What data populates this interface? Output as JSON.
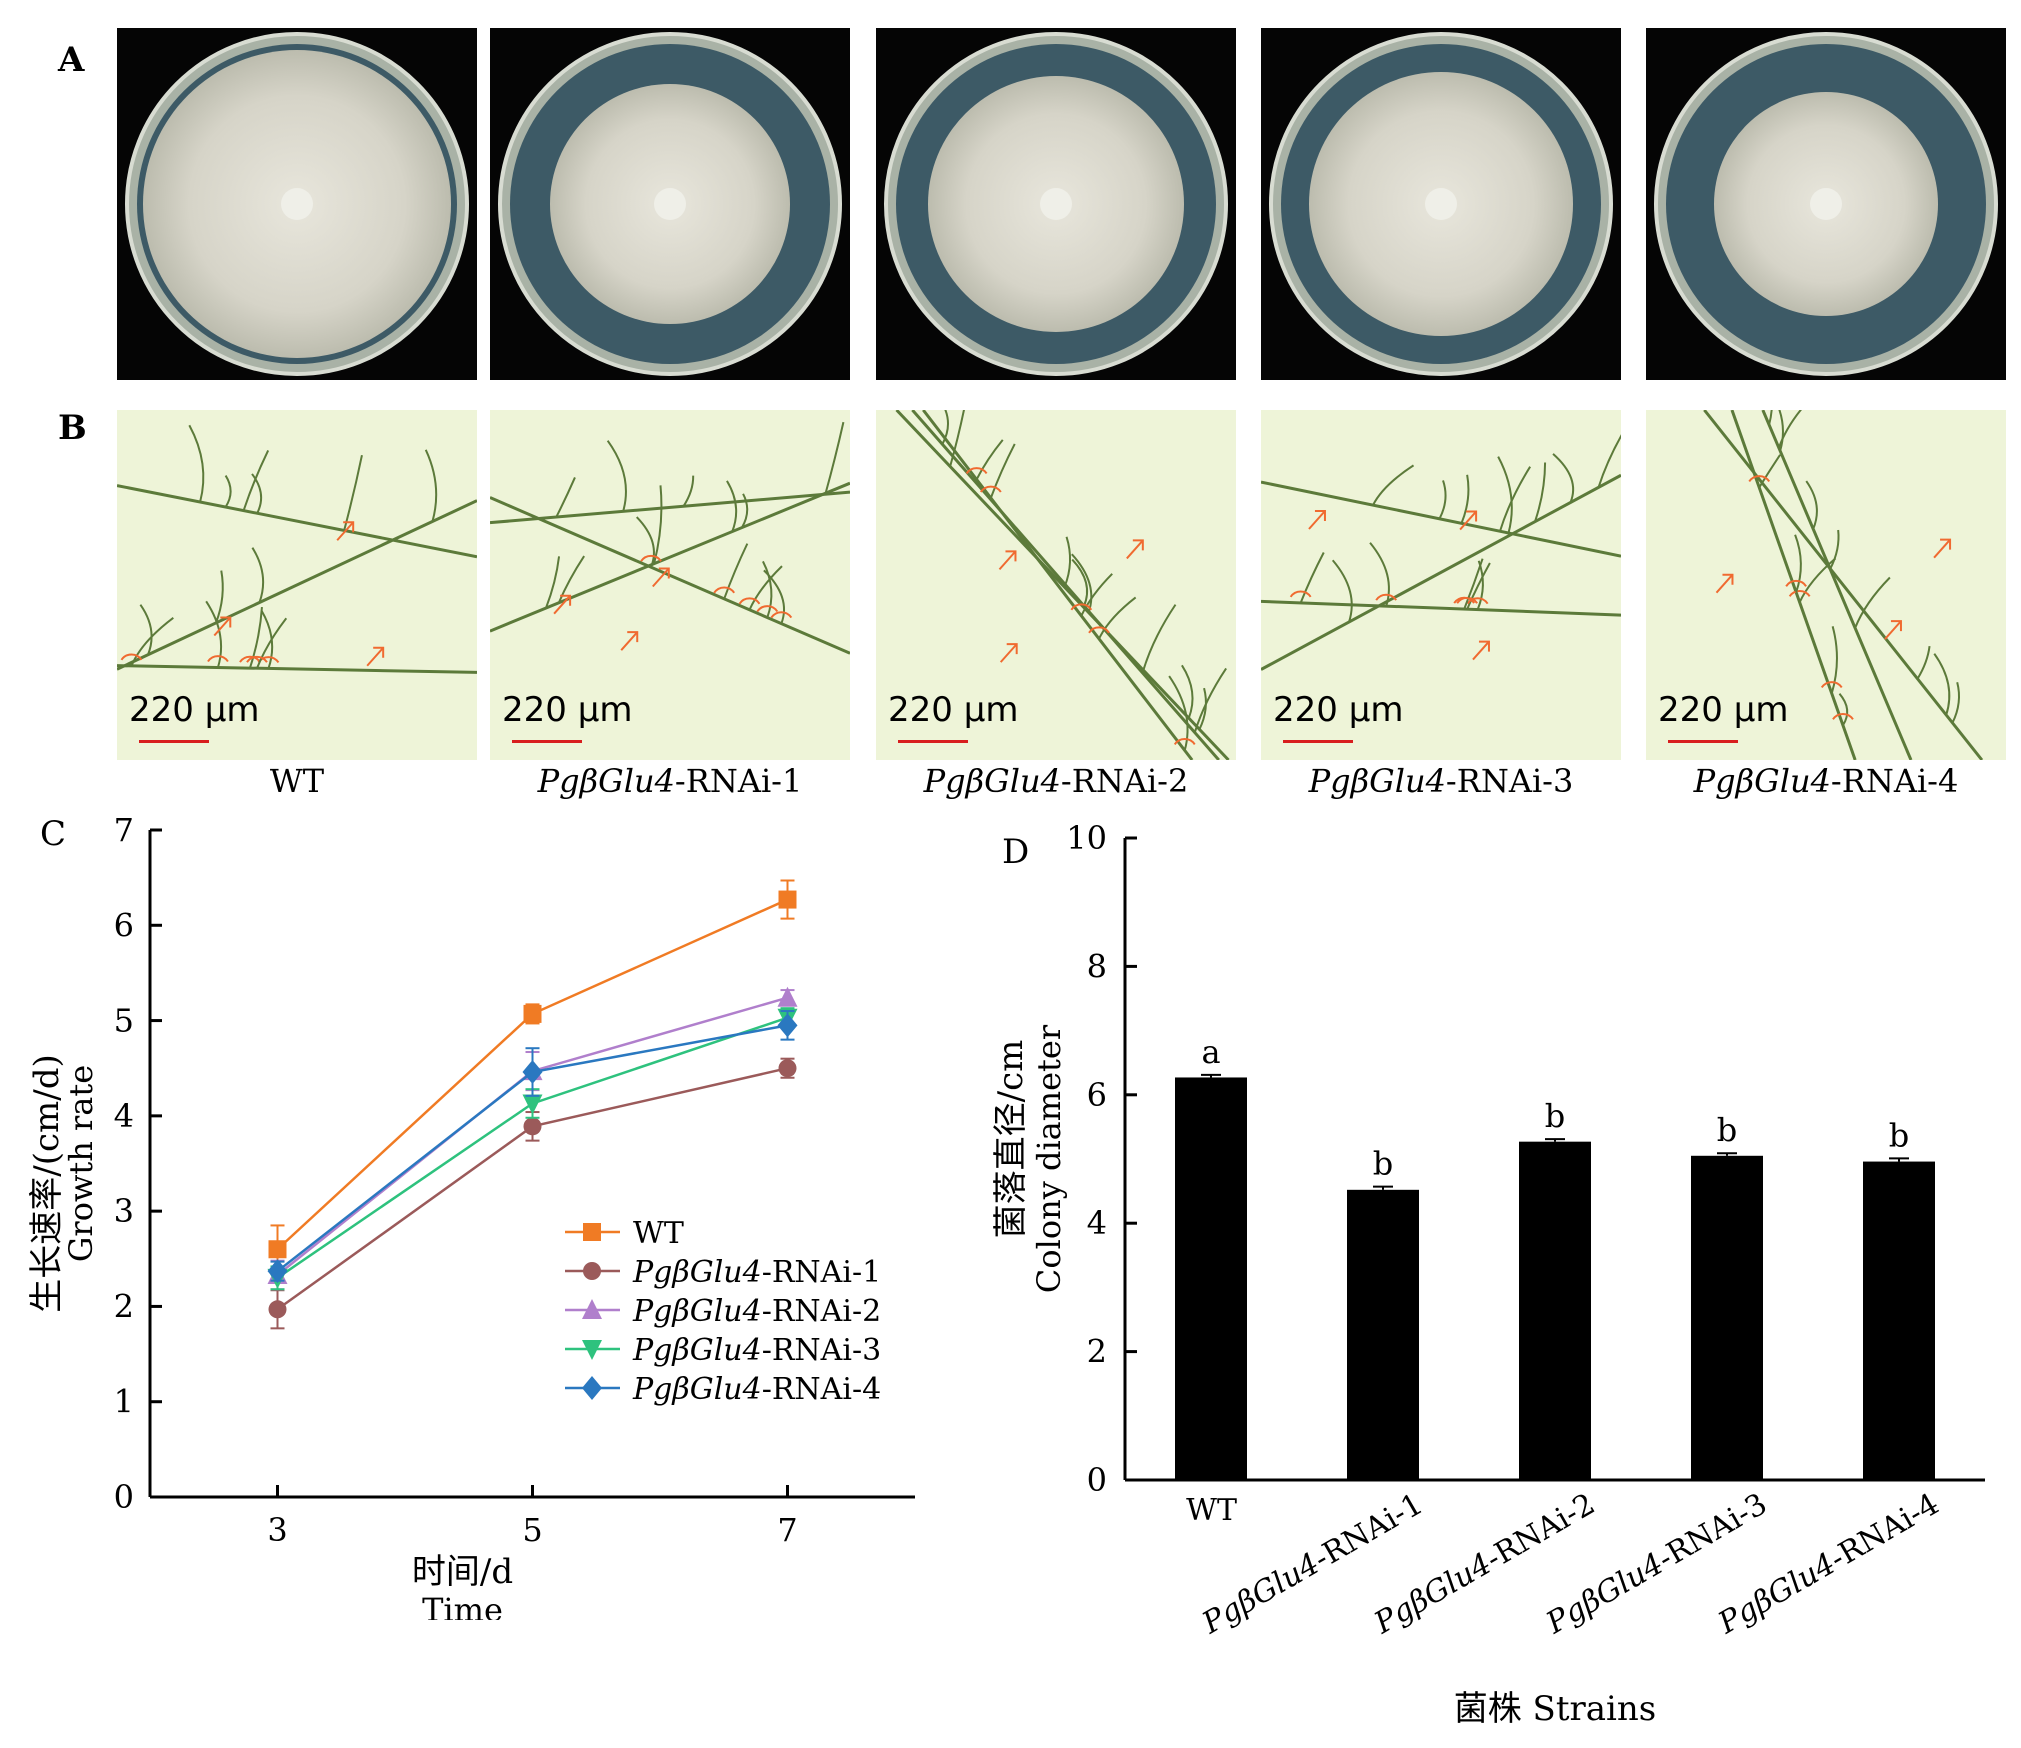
{
  "panel_a": {
    "letter": "A",
    "plates": [
      {
        "strain": "WT"
      },
      {
        "strain": "PgβGlu4-RNAi-1"
      },
      {
        "strain": "PgβGlu4-RNAi-2"
      },
      {
        "strain": "PgβGlu4-RNAi-3"
      },
      {
        "strain": "PgβGlu4-RNAi-4"
      }
    ]
  },
  "panel_b": {
    "letter": "B",
    "scale_label": "220 μm",
    "labels": [
      {
        "italic": "",
        "text": "WT"
      },
      {
        "italic": "PgβGlu4",
        "text": "-RNAi-1"
      },
      {
        "italic": "PgβGlu4",
        "text": "-RNAi-2"
      },
      {
        "italic": "PgβGlu4",
        "text": "-RNAi-3"
      },
      {
        "italic": "PgβGlu4",
        "text": "-RNAi-4"
      }
    ]
  },
  "colors": {
    "wt": "#f07b24",
    "rnai1": "#9b5a5a",
    "rnai2": "#b07fcc",
    "rnai3": "#2ec27e",
    "rnai4": "#2a78c0",
    "bar": "#000000",
    "hyphae_bg": "#eef4d8",
    "hyphae": "#5c7a3a",
    "marker": "#f06a30"
  },
  "chart_data": [
    {
      "panel": "C",
      "type": "line",
      "x": [
        3,
        5,
        7
      ],
      "xticks": [
        "3",
        "5",
        "7"
      ],
      "ylim": [
        0,
        7
      ],
      "yticks": [
        "0",
        "1",
        "2",
        "3",
        "4",
        "5",
        "6",
        "7"
      ],
      "xlabel": "时间/d",
      "xlabel2": "Time",
      "ylabel": "生长速率/(cm/d)",
      "ylabel2": "Growth rate",
      "legend_position": "bottom-right",
      "series": [
        {
          "name": "WT",
          "italic": "",
          "suffix": "WT",
          "marker": "square",
          "values": [
            2.6,
            5.07,
            6.27
          ],
          "errors": [
            0.25,
            0.1,
            0.2
          ]
        },
        {
          "name": "PgβGlu4-RNAi-1",
          "italic": "PgβGlu4",
          "suffix": "-RNAi-1",
          "marker": "circle",
          "values": [
            1.97,
            3.89,
            4.5
          ],
          "errors": [
            0.2,
            0.15,
            0.1
          ]
        },
        {
          "name": "PgβGlu4-RNAi-2",
          "italic": "PgβGlu4",
          "suffix": "-RNAi-2",
          "marker": "triangle-up",
          "values": [
            2.33,
            4.47,
            5.24
          ],
          "errors": [
            0.15,
            0.2,
            0.08
          ]
        },
        {
          "name": "PgβGlu4-RNAi-3",
          "italic": "PgβGlu4",
          "suffix": "-RNAi-3",
          "marker": "triangle-down",
          "values": [
            2.3,
            4.13,
            5.03
          ],
          "errors": [
            0.12,
            0.15,
            0.1
          ]
        },
        {
          "name": "PgβGlu4-RNAi-4",
          "italic": "PgβGlu4",
          "suffix": "-RNAi-4",
          "marker": "diamond",
          "values": [
            2.37,
            4.46,
            4.95
          ],
          "errors": [
            0.1,
            0.25,
            0.15
          ]
        }
      ]
    },
    {
      "panel": "D",
      "type": "bar",
      "categories": [
        "WT",
        "PgβGlu4-RNAi-1",
        "PgβGlu4-RNAi-2",
        "PgβGlu4-RNAi-3",
        "PgβGlu4-RNAi-4"
      ],
      "category_italic": [
        "",
        "PgβGlu4",
        "PgβGlu4",
        "PgβGlu4",
        "PgβGlu4"
      ],
      "category_suffix": [
        "WT",
        "-RNAi-1",
        "-RNAi-2",
        "-RNAi-3",
        "-RNAi-4"
      ],
      "values": [
        6.27,
        4.52,
        5.27,
        5.05,
        4.96
      ],
      "errors": [
        0.04,
        0.05,
        0.04,
        0.04,
        0.05
      ],
      "significance": [
        "a",
        "b",
        "b",
        "b",
        "b"
      ],
      "ylim": [
        0,
        10
      ],
      "yticks": [
        "0",
        "2",
        "4",
        "6",
        "8",
        "10"
      ],
      "xlabel": "菌株 Strains",
      "ylabel": "菌落直径/cm",
      "ylabel2": "Colony diameter"
    }
  ]
}
